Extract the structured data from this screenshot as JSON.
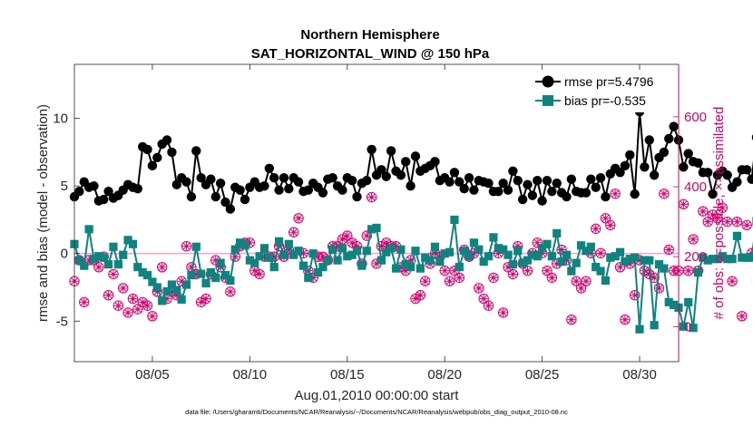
{
  "chart_data": {
    "type": "line",
    "title": [
      "Northern Hemisphere",
      "SAT_HORIZONTAL_WIND @ 150 hPa"
    ],
    "xlabel": "Aug.01,2010 00:00:00 start",
    "ylabel_left": "rmse and bias (model - observation)",
    "ylabel_right": "# of obs: o=possible; ×=assimilated",
    "footnote": "data file: /Users/gharamti/Documents/NCAR/Reanalysis/~/Documents/NCAR/Reanalysis/webpub/obs_diag_output_2010-08.nc",
    "x_start_day": 1.0,
    "x_step_days": 0.25,
    "xlim_days": [
      1,
      32
    ],
    "ylim_left": [
      -8,
      14
    ],
    "ylim_right": [
      -100,
      750
    ],
    "x_ticks": [
      {
        "day": 5,
        "label": "08/05"
      },
      {
        "day": 10,
        "label": "08/10"
      },
      {
        "day": 15,
        "label": "08/15"
      },
      {
        "day": 20,
        "label": "08/20"
      },
      {
        "day": 25,
        "label": "08/25"
      },
      {
        "day": 30,
        "label": "08/30"
      }
    ],
    "y_ticks_left": [
      {
        "value": -5,
        "label": "-5"
      },
      {
        "value": 0,
        "label": "0"
      },
      {
        "value": 5,
        "label": "5"
      },
      {
        "value": 10,
        "label": "10"
      }
    ],
    "y_ticks_right": [
      {
        "value": 0,
        "label": "0"
      },
      {
        "value": 200,
        "label": "200"
      },
      {
        "value": 400,
        "label": "400"
      },
      {
        "value": 600,
        "label": "600"
      }
    ],
    "series": [
      {
        "name": "rmse",
        "legend": "rmse pr=5.4796",
        "color": "#000000",
        "marker": "circle",
        "axis": "left",
        "values": [
          4.2,
          4.6,
          5.3,
          4.9,
          5.0,
          3.9,
          4.0,
          4.6,
          4.1,
          4.3,
          4.7,
          5.1,
          4.9,
          4.8,
          7.9,
          7.7,
          6.5,
          7.1,
          8.1,
          8.4,
          7.5,
          5.1,
          5.6,
          5.3,
          4.2,
          7.6,
          5.6,
          5.1,
          5.5,
          4.2,
          5.2,
          3.8,
          3.3,
          4.9,
          4.7,
          4.0,
          4.9,
          5.3,
          4.9,
          5.0,
          6.3,
          5.6,
          4.7,
          5.6,
          4.8,
          5.6,
          5.3,
          4.6,
          4.7,
          5.2,
          4.9,
          4.5,
          5.5,
          5.6,
          5.0,
          4.7,
          5.6,
          5.4,
          4.2,
          5.2,
          5.4,
          7.7,
          5.8,
          6.2,
          5.7,
          7.6,
          6.1,
          5.8,
          6.8,
          5.0,
          7.2,
          6.1,
          6.3,
          6.5,
          6.8,
          5.4,
          5.6,
          5.3,
          6.0,
          5.3,
          4.8,
          5.6,
          4.7,
          5.4,
          5.3,
          5.2,
          4.6,
          4.6,
          5.2,
          4.7,
          6.1,
          5.4,
          4.0,
          5.1,
          4.3,
          5.4,
          3.9,
          5.4,
          4.6,
          5.2,
          4.5,
          4.2,
          5.5,
          4.6,
          4.5,
          4.5,
          5.5,
          4.9,
          5.6,
          4.2,
          5.9,
          6.3,
          6.0,
          6.5,
          7.3,
          4.4,
          10.5,
          6.4,
          8.4,
          5.8,
          7.1,
          7.5,
          8.5,
          9.4,
          8.4,
          6.4,
          7.4,
          6.8,
          6.7,
          6.0,
          6.0,
          4.4,
          5.8,
          6.1,
          5.8,
          4.9,
          5.3,
          6.2,
          6.2,
          5.5,
          8.6,
          8.3
        ],
        "line_breaks_after_index": [
          110
        ]
      },
      {
        "name": "bias",
        "legend": "bias pr=-0.535",
        "color": "#0f8380",
        "marker": "square",
        "axis": "left",
        "values": [
          0.7,
          -0.5,
          -0.9,
          1.8,
          -0.4,
          -0.2,
          -0.3,
          -0.8,
          0.5,
          -0.8,
          -0.1,
          1.0,
          0.7,
          -1.0,
          -1.4,
          -1.6,
          -2.1,
          -2.5,
          -3.5,
          -2.8,
          -2.3,
          -2.7,
          -3.4,
          -2.3,
          -1.6,
          0.5,
          -1.5,
          -2.2,
          -1.4,
          -1.8,
          -0.7,
          -1.6,
          -2.0,
          0.3,
          0.8,
          0.6,
          -0.5,
          -0.7,
          -0.2,
          0.4,
          -0.3,
          -1.0,
          0.9,
          -0.1,
          0.7,
          -0.1,
          0.2,
          -0.9,
          -1.8,
          0.0,
          -1.4,
          -1.0,
          -0.5,
          0.3,
          -0.5,
          0.4,
          -0.2,
          -0.1,
          0.2,
          -0.9,
          0.2,
          1.8,
          1.9,
          -0.5,
          0.1,
          0.4,
          -1.1,
          0.3,
          -0.8,
          -1.0,
          0.2,
          -1.1,
          -0.3,
          -0.5,
          0.5,
          -0.6,
          0.0,
          0.1,
          2.5,
          -1.0,
          0.2,
          -0.2,
          0.8,
          0.3,
          -0.6,
          -0.2,
          1.2,
          0.4,
          0.3,
          -0.1,
          -0.8,
          0.2,
          -0.7,
          -0.5,
          -0.1,
          -0.2,
          0.4,
          0.7,
          -0.2,
          1.5,
          -0.6,
          -0.1,
          -1.3,
          -0.7,
          0.6,
          0.2,
          0.5,
          -1.0,
          -1.3,
          -2.0,
          -0.3,
          -0.2,
          0.1,
          -0.6,
          -0.4,
          -0.3,
          -5.6,
          -0.5,
          -0.5,
          -5.3,
          -0.8,
          -1.1,
          -3.6,
          -3.8,
          -4.0,
          -5.4,
          -3.6,
          -5.5,
          -1.4,
          -0.3,
          -0.5,
          -0.4,
          -0.4,
          -0.2,
          -0.4,
          -0.4,
          1.3,
          -0.3,
          -0.3,
          -0.3,
          2.4,
          -1.7,
          -2.5
        ],
        "line_breaks_after_index": [
          110
        ]
      },
      {
        "name": "possible obs",
        "color": "#d6006f",
        "marker": "circle-open",
        "axis": "right",
        "values": [
          130,
          190,
          70,
          190,
          190,
          170,
          200,
          90,
          150,
          60,
          110,
          40,
          80,
          50,
          70,
          60,
          30,
          100,
          170,
          80,
          100,
          90,
          130,
          230,
          170,
          150,
          70,
          80,
          150,
          190,
          170,
          140,
          100,
          200,
          230,
          240,
          240,
          160,
          150,
          200,
          200,
          200,
          230,
          200,
          220,
          270,
          310,
          210,
          160,
          140,
          200,
          200,
          190,
          230,
          230,
          250,
          260,
          240,
          230,
          180,
          260,
          370,
          180,
          230,
          240,
          230,
          230,
          170,
          160,
          190,
          80,
          90,
          130,
          180,
          210,
          200,
          160,
          130,
          160,
          140,
          220,
          200,
          210,
          110,
          80,
          60,
          140,
          210,
          40,
          170,
          150,
          230,
          180,
          160,
          210,
          240,
          210,
          160,
          140,
          180,
          220,
          190,
          20,
          130,
          110,
          130,
          210,
          280,
          210,
          310,
          290,
          380,
          170,
          20,
          180,
          90,
          190,
          160,
          150,
          140,
          110,
          380,
          220,
          160,
          160,
          350,
          160,
          250,
          160,
          330,
          300,
          320,
          310,
          340,
          300,
          130,
          300,
          30,
          290,
          210,
          220,
          80,
          250,
          0
        ],
        "line_breaks_after_index": []
      },
      {
        "name": "assimilated obs",
        "color": "#d6006f",
        "marker": "x",
        "axis": "right",
        "values": [
          130,
          190,
          70,
          190,
          190,
          170,
          200,
          90,
          150,
          60,
          110,
          40,
          80,
          50,
          70,
          60,
          30,
          100,
          170,
          80,
          100,
          90,
          130,
          230,
          170,
          150,
          70,
          80,
          150,
          190,
          170,
          140,
          100,
          200,
          230,
          240,
          240,
          160,
          150,
          200,
          200,
          200,
          230,
          200,
          220,
          270,
          310,
          210,
          160,
          140,
          200,
          200,
          190,
          230,
          230,
          250,
          260,
          240,
          230,
          180,
          260,
          370,
          180,
          230,
          240,
          230,
          230,
          170,
          160,
          190,
          80,
          90,
          130,
          180,
          210,
          200,
          160,
          130,
          160,
          140,
          220,
          200,
          210,
          110,
          80,
          60,
          140,
          210,
          40,
          170,
          150,
          230,
          180,
          160,
          210,
          240,
          210,
          160,
          140,
          180,
          220,
          190,
          20,
          130,
          110,
          130,
          210,
          280,
          210,
          310,
          290,
          380,
          170,
          20,
          180,
          90,
          190,
          160,
          150,
          140,
          110,
          380,
          220,
          160,
          160,
          350,
          160,
          250,
          160,
          330,
          300,
          320,
          310,
          340,
          300,
          130,
          300,
          30,
          290,
          210,
          220,
          80,
          250,
          0
        ],
        "line_breaks_after_index": []
      }
    ],
    "legend_position": "top-right",
    "colors": {
      "rmse": "#000000",
      "bias": "#0f8380",
      "obs": "#d6006f",
      "zero_line": "#f2a8c8",
      "axes": "#262626"
    }
  }
}
